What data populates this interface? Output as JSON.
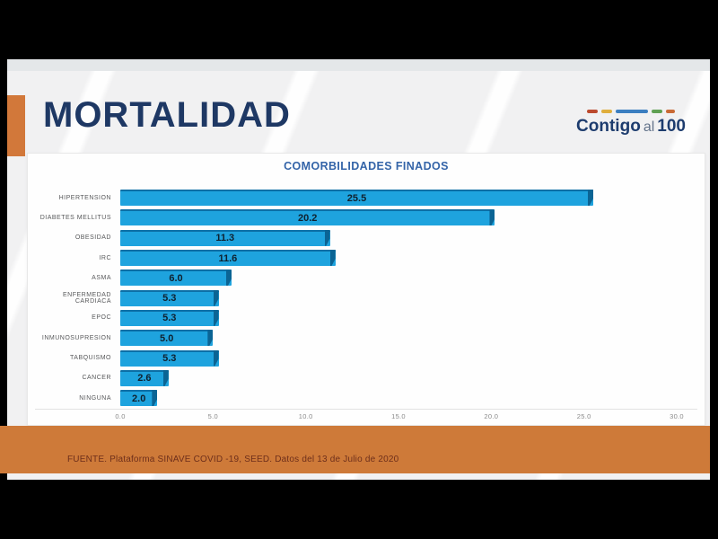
{
  "slide": {
    "title": "MORTALIDAD",
    "logo": {
      "word1": "Contigo",
      "word2": "al",
      "word3": "100"
    },
    "footer": "FUENTE. Plataforma SINAVE COVID -19, SEED. Datos del 13 de Julio de 2020"
  },
  "chart_data": {
    "type": "bar",
    "orientation": "horizontal",
    "title": "COMORBILIDADES FINADOS",
    "categories": [
      "HIPERTENSION",
      "DIABETES MELLITUS",
      "OBESIDAD",
      "IRC",
      "ASMA",
      "ENFERMEDAD CARDIACA",
      "EPOC",
      "INMUNOSUPRESION",
      "TABQUISMO",
      "CANCER",
      "NINGUNA"
    ],
    "values": [
      25.5,
      20.2,
      11.3,
      11.6,
      6.0,
      5.3,
      5.3,
      5.0,
      5.3,
      2.6,
      2.0
    ],
    "xlabel": "",
    "ylabel": "",
    "xlim": [
      0,
      30
    ],
    "xticks": [
      "0.0",
      "5.0",
      "10.0",
      "15.0",
      "20.0",
      "25.0",
      "30.0"
    ],
    "grid": false,
    "legend": "none",
    "value_labels": true
  },
  "colors": {
    "accent_orange": "#d2783a",
    "footer_band_orange": "#ce7a39",
    "footer_text": "#6e2f1b",
    "title_navy": "#1e3864",
    "chart_title_blue": "#3464a8",
    "bar_blue": "#1ea3de",
    "bar_bevel_blue": "#0b6494",
    "slide_background": "#f1f1f2",
    "frame_black": "#000000"
  }
}
